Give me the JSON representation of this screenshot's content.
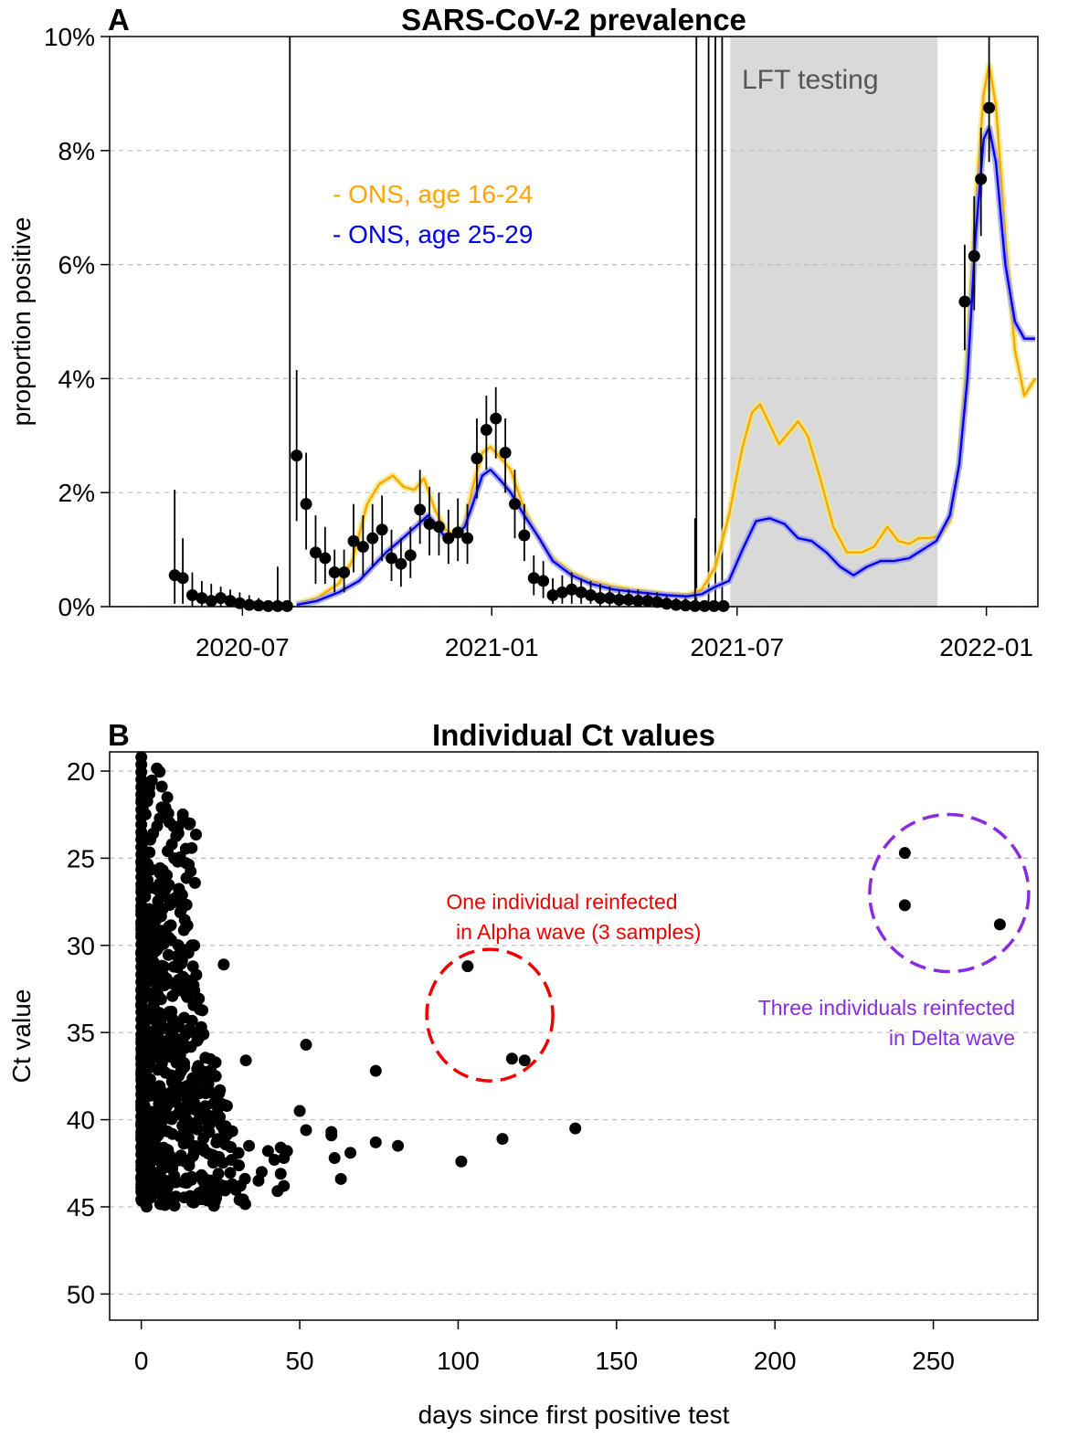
{
  "chart_data": [
    {
      "panel_label": "A",
      "type": "line",
      "title": "SARS-CoV-2 prevalence",
      "xlabel": "",
      "ylabel": "proportion positive",
      "x_ticks": [
        "2020-07",
        "2021-01",
        "2021-07",
        "2022-01"
      ],
      "y_ticks": [
        "0%",
        "2%",
        "4%",
        "6%",
        "8%",
        "10%"
      ],
      "ylim": [
        0,
        10
      ],
      "xlim": [
        "2020-03-25",
        "2022-02-08"
      ],
      "grid": "horizontal dashed",
      "shaded_region": {
        "label": "LFT testing",
        "start": "2021-06-26",
        "end": "2021-11-26",
        "color": "#d9d9d9"
      },
      "vertical_lines": [
        "2020-08-05",
        "2021-06-01",
        "2021-06-10",
        "2021-06-15",
        "2021-06-20"
      ],
      "legend": [
        {
          "label": "- ONS, age 16-24",
          "color": "#FFA500"
        },
        {
          "label": "- ONS, age 25-29",
          "color": "#0000EE"
        }
      ],
      "series": [
        {
          "name": "- ONS, age 16-24",
          "color": "#FFA500",
          "dates": [
            "2020-08-10",
            "2020-08-25",
            "2020-09-10",
            "2020-09-20",
            "2020-10-01",
            "2020-10-10",
            "2020-10-20",
            "2020-10-28",
            "2020-11-05",
            "2020-11-12",
            "2020-11-20",
            "2020-11-28",
            "2020-12-05",
            "2020-12-12",
            "2020-12-18",
            "2020-12-25",
            "2020-12-31",
            "2021-01-08",
            "2021-01-15",
            "2021-01-25",
            "2021-02-05",
            "2021-02-15",
            "2021-03-01",
            "2021-03-15",
            "2021-04-01",
            "2021-04-20",
            "2021-05-10",
            "2021-05-25",
            "2021-06-05",
            "2021-06-15",
            "2021-06-25",
            "2021-07-05",
            "2021-07-12",
            "2021-07-18",
            "2021-07-25",
            "2021-08-01",
            "2021-08-08",
            "2021-08-15",
            "2021-08-22",
            "2021-09-01",
            "2021-09-10",
            "2021-09-20",
            "2021-10-01",
            "2021-10-10",
            "2021-10-20",
            "2021-10-28",
            "2021-11-05",
            "2021-11-12",
            "2021-11-20",
            "2021-11-28",
            "2021-12-05",
            "2021-12-12",
            "2021-12-18",
            "2021-12-24",
            "2021-12-30",
            "2022-01-03",
            "2022-01-08",
            "2022-01-15",
            "2022-01-22",
            "2022-01-29",
            "2022-02-06"
          ],
          "values": [
            0.05,
            0.15,
            0.4,
            0.8,
            1.8,
            2.15,
            2.3,
            2.1,
            2.05,
            2.25,
            1.7,
            1.35,
            1.25,
            1.45,
            2.1,
            2.7,
            2.8,
            2.6,
            2.4,
            1.7,
            1.2,
            0.85,
            0.6,
            0.45,
            0.35,
            0.28,
            0.22,
            0.2,
            0.3,
            0.7,
            1.6,
            2.8,
            3.4,
            3.55,
            3.2,
            2.85,
            3.05,
            3.25,
            3.0,
            2.2,
            1.4,
            0.95,
            0.95,
            1.05,
            1.4,
            1.15,
            1.1,
            1.2,
            1.2,
            1.25,
            1.5,
            2.5,
            4.5,
            7.0,
            9.0,
            9.5,
            8.8,
            6.5,
            4.5,
            3.7,
            4.0
          ]
        },
        {
          "name": "- ONS, age 25-29",
          "color": "#0000EE",
          "dates": [
            "2020-08-10",
            "2020-08-25",
            "2020-09-10",
            "2020-09-25",
            "2020-10-05",
            "2020-10-15",
            "2020-10-25",
            "2020-11-01",
            "2020-11-08",
            "2020-11-15",
            "2020-11-22",
            "2020-11-28",
            "2020-12-05",
            "2020-12-12",
            "2020-12-18",
            "2020-12-25",
            "2020-12-31",
            "2021-01-08",
            "2021-01-15",
            "2021-01-25",
            "2021-02-05",
            "2021-02-15",
            "2021-03-01",
            "2021-03-15",
            "2021-04-01",
            "2021-04-20",
            "2021-05-10",
            "2021-05-25",
            "2021-06-05",
            "2021-06-15",
            "2021-06-25",
            "2021-07-05",
            "2021-07-15",
            "2021-07-25",
            "2021-08-05",
            "2021-08-15",
            "2021-08-25",
            "2021-09-05",
            "2021-09-15",
            "2021-09-25",
            "2021-10-05",
            "2021-10-15",
            "2021-10-25",
            "2021-11-05",
            "2021-11-15",
            "2021-11-25",
            "2021-12-05",
            "2021-12-12",
            "2021-12-18",
            "2021-12-24",
            "2021-12-30",
            "2022-01-03",
            "2022-01-08",
            "2022-01-15",
            "2022-01-22",
            "2022-01-29",
            "2022-02-06"
          ],
          "values": [
            0.03,
            0.1,
            0.25,
            0.45,
            0.7,
            0.95,
            1.15,
            1.3,
            1.45,
            1.6,
            1.4,
            1.2,
            1.25,
            1.4,
            1.8,
            2.3,
            2.4,
            2.2,
            2.0,
            1.6,
            1.2,
            0.8,
            0.55,
            0.4,
            0.3,
            0.25,
            0.2,
            0.18,
            0.22,
            0.35,
            0.45,
            1.0,
            1.5,
            1.55,
            1.45,
            1.2,
            1.15,
            0.95,
            0.7,
            0.55,
            0.7,
            0.8,
            0.8,
            0.85,
            1.0,
            1.15,
            1.6,
            2.5,
            4.0,
            6.5,
            8.2,
            8.4,
            7.8,
            6.0,
            5.0,
            4.7,
            4.7
          ]
        }
      ],
      "points": [
        {
          "date": "2020-05-12",
          "value": 0.55,
          "lo": 0.05,
          "hi": 2.05
        },
        {
          "date": "2020-05-18",
          "value": 0.5,
          "lo": 0.05,
          "hi": 1.2
        },
        {
          "date": "2020-05-25",
          "value": 0.2,
          "lo": 0.0,
          "hi": 0.6
        },
        {
          "date": "2020-06-01",
          "value": 0.15,
          "lo": 0.0,
          "hi": 0.45
        },
        {
          "date": "2020-06-08",
          "value": 0.1,
          "lo": 0.0,
          "hi": 0.4
        },
        {
          "date": "2020-06-15",
          "value": 0.15,
          "lo": 0.0,
          "hi": 0.35
        },
        {
          "date": "2020-06-22",
          "value": 0.1,
          "lo": 0.0,
          "hi": 0.3
        },
        {
          "date": "2020-06-29",
          "value": 0.06,
          "lo": 0.0,
          "hi": 0.25
        },
        {
          "date": "2020-07-06",
          "value": 0.03,
          "lo": 0.0,
          "hi": 0.2
        },
        {
          "date": "2020-07-13",
          "value": 0.02,
          "lo": 0.0,
          "hi": 0.15
        },
        {
          "date": "2020-07-20",
          "value": 0.01,
          "lo": 0.0,
          "hi": 0.1
        },
        {
          "date": "2020-07-27",
          "value": 0.01,
          "lo": 0.0,
          "hi": 0.7
        },
        {
          "date": "2020-08-03",
          "value": 0.01,
          "lo": 0.0,
          "hi": 0.1
        },
        {
          "date": "2020-08-10",
          "value": 2.65,
          "lo": 1.5,
          "hi": 4.15
        },
        {
          "date": "2020-08-17",
          "value": 1.8,
          "lo": 1.0,
          "hi": 2.7
        },
        {
          "date": "2020-08-24",
          "value": 0.95,
          "lo": 0.4,
          "hi": 1.6
        },
        {
          "date": "2020-08-31",
          "value": 0.85,
          "lo": 0.4,
          "hi": 1.4
        },
        {
          "date": "2020-09-07",
          "value": 0.6,
          "lo": 0.25,
          "hi": 1.0
        },
        {
          "date": "2020-09-14",
          "value": 0.6,
          "lo": 0.25,
          "hi": 1.0
        },
        {
          "date": "2020-09-21",
          "value": 1.15,
          "lo": 0.6,
          "hi": 1.8
        },
        {
          "date": "2020-09-28",
          "value": 1.05,
          "lo": 0.55,
          "hi": 1.6
        },
        {
          "date": "2020-10-05",
          "value": 1.2,
          "lo": 0.7,
          "hi": 1.8
        },
        {
          "date": "2020-10-12",
          "value": 1.35,
          "lo": 0.8,
          "hi": 1.95
        },
        {
          "date": "2020-10-19",
          "value": 0.85,
          "lo": 0.45,
          "hi": 1.35
        },
        {
          "date": "2020-10-26",
          "value": 0.75,
          "lo": 0.35,
          "hi": 1.2
        },
        {
          "date": "2020-11-02",
          "value": 0.9,
          "lo": 0.5,
          "hi": 1.4
        },
        {
          "date": "2020-11-09",
          "value": 1.7,
          "lo": 1.1,
          "hi": 2.4
        },
        {
          "date": "2020-11-16",
          "value": 1.45,
          "lo": 0.9,
          "hi": 2.1
        },
        {
          "date": "2020-11-23",
          "value": 1.4,
          "lo": 0.9,
          "hi": 2.0
        },
        {
          "date": "2020-11-30",
          "value": 1.2,
          "lo": 0.75,
          "hi": 1.7
        },
        {
          "date": "2020-12-07",
          "value": 1.3,
          "lo": 0.8,
          "hi": 1.9
        },
        {
          "date": "2020-12-14",
          "value": 1.2,
          "lo": 0.75,
          "hi": 1.8
        },
        {
          "date": "2020-12-21",
          "value": 2.6,
          "lo": 1.9,
          "hi": 3.3
        },
        {
          "date": "2020-12-28",
          "value": 3.1,
          "lo": 2.4,
          "hi": 3.7
        },
        {
          "date": "2021-01-04",
          "value": 3.3,
          "lo": 2.6,
          "hi": 3.85
        },
        {
          "date": "2021-01-11",
          "value": 2.7,
          "lo": 2.0,
          "hi": 3.3
        },
        {
          "date": "2021-01-18",
          "value": 1.8,
          "lo": 1.2,
          "hi": 2.4
        },
        {
          "date": "2021-01-25",
          "value": 1.25,
          "lo": 0.8,
          "hi": 1.8
        },
        {
          "date": "2021-02-01",
          "value": 0.5,
          "lo": 0.2,
          "hi": 0.9
        },
        {
          "date": "2021-02-08",
          "value": 0.45,
          "lo": 0.15,
          "hi": 0.8
        },
        {
          "date": "2021-02-15",
          "value": 0.2,
          "lo": 0.05,
          "hi": 0.5
        },
        {
          "date": "2021-02-22",
          "value": 0.25,
          "lo": 0.05,
          "hi": 0.55
        },
        {
          "date": "2021-03-01",
          "value": 0.3,
          "lo": 0.05,
          "hi": 0.6
        },
        {
          "date": "2021-03-08",
          "value": 0.25,
          "lo": 0.05,
          "hi": 0.5
        },
        {
          "date": "2021-03-15",
          "value": 0.2,
          "lo": 0.05,
          "hi": 0.45
        },
        {
          "date": "2021-03-22",
          "value": 0.15,
          "lo": 0.0,
          "hi": 0.4
        },
        {
          "date": "2021-03-29",
          "value": 0.15,
          "lo": 0.0,
          "hi": 0.35
        },
        {
          "date": "2021-04-05",
          "value": 0.12,
          "lo": 0.0,
          "hi": 0.3
        },
        {
          "date": "2021-04-12",
          "value": 0.12,
          "lo": 0.0,
          "hi": 0.3
        },
        {
          "date": "2021-04-19",
          "value": 0.1,
          "lo": 0.0,
          "hi": 0.3
        },
        {
          "date": "2021-04-26",
          "value": 0.1,
          "lo": 0.0,
          "hi": 0.25
        },
        {
          "date": "2021-05-03",
          "value": 0.08,
          "lo": 0.0,
          "hi": 0.25
        },
        {
          "date": "2021-05-10",
          "value": 0.05,
          "lo": 0.0,
          "hi": 0.2
        },
        {
          "date": "2021-05-17",
          "value": 0.03,
          "lo": 0.0,
          "hi": 0.15
        },
        {
          "date": "2021-05-24",
          "value": 0.02,
          "lo": 0.0,
          "hi": 0.15
        },
        {
          "date": "2021-05-31",
          "value": 0.01,
          "lo": 0.0,
          "hi": 1.55
        },
        {
          "date": "2021-06-07",
          "value": 0.01,
          "lo": 0.0,
          "hi": 0.1
        },
        {
          "date": "2021-06-14",
          "value": 0.01,
          "lo": 0.0,
          "hi": 0.1
        },
        {
          "date": "2021-06-21",
          "value": 0.01,
          "lo": 0.0,
          "hi": 0.1
        },
        {
          "date": "2021-12-16",
          "value": 5.35,
          "lo": 4.5,
          "hi": 6.35
        },
        {
          "date": "2021-12-23",
          "value": 6.15,
          "lo": 5.2,
          "hi": 7.2
        },
        {
          "date": "2021-12-28",
          "value": 7.5,
          "lo": 6.5,
          "hi": 8.4
        },
        {
          "date": "2022-01-03",
          "value": 8.75,
          "lo": 7.8,
          "hi": 10.0
        }
      ]
    },
    {
      "panel_label": "B",
      "type": "scatter",
      "title": "Individual Ct values",
      "xlabel": "days since first positive test",
      "ylabel": "Ct value",
      "x_ticks": [
        "0",
        "50",
        "100",
        "150",
        "200",
        "250"
      ],
      "y_ticks": [
        "20",
        "25",
        "30",
        "35",
        "40",
        "45",
        "50"
      ],
      "xlim": [
        -10,
        283
      ],
      "ylim": [
        51.5,
        18.9
      ],
      "y_reversed": true,
      "grid": "horizontal dashed",
      "annotations": [
        {
          "lines": [
            "One individual reinfected",
            " in Alpha wave (3 samples)"
          ],
          "color": "#EE0000",
          "circle_center": [
            110,
            34
          ]
        },
        {
          "lines": [
            "Three individuals reinfected",
            "in Delta wave"
          ],
          "color": "#8A2BE2",
          "circle_center": [
            255,
            27
          ]
        }
      ],
      "dense_cluster": {
        "x_range": [
          0,
          35
        ],
        "y_range": [
          19,
          45
        ],
        "description_count": 700
      },
      "points": [
        {
          "x": 26,
          "y": 31.1
        },
        {
          "x": 52,
          "y": 35.7
        },
        {
          "x": 74,
          "y": 37.2
        },
        {
          "x": 33,
          "y": 36.6
        },
        {
          "x": 50,
          "y": 39.5
        },
        {
          "x": 52,
          "y": 40.6
        },
        {
          "x": 60,
          "y": 40.7
        },
        {
          "x": 60,
          "y": 40.9
        },
        {
          "x": 66,
          "y": 41.9
        },
        {
          "x": 61,
          "y": 42.2
        },
        {
          "x": 63,
          "y": 43.4
        },
        {
          "x": 74,
          "y": 41.3
        },
        {
          "x": 81,
          "y": 41.5
        },
        {
          "x": 101,
          "y": 42.4
        },
        {
          "x": 114,
          "y": 41.1
        },
        {
          "x": 137,
          "y": 40.5
        },
        {
          "x": 44,
          "y": 41.6
        },
        {
          "x": 45,
          "y": 42.2
        },
        {
          "x": 46,
          "y": 41.8
        },
        {
          "x": 44,
          "y": 43.1
        },
        {
          "x": 45,
          "y": 43.8
        },
        {
          "x": 43,
          "y": 44.1
        },
        {
          "x": 42,
          "y": 42.3
        },
        {
          "x": 40,
          "y": 41.8
        },
        {
          "x": 37,
          "y": 43.5
        },
        {
          "x": 38,
          "y": 43.0
        },
        {
          "x": 34,
          "y": 41.5
        },
        {
          "x": 31,
          "y": 44.6
        },
        {
          "x": 103,
          "y": 31.2
        },
        {
          "x": 117,
          "y": 36.5
        },
        {
          "x": 121,
          "y": 36.6
        },
        {
          "x": 241,
          "y": 24.7
        },
        {
          "x": 241,
          "y": 27.7
        },
        {
          "x": 271,
          "y": 28.8
        }
      ]
    }
  ]
}
